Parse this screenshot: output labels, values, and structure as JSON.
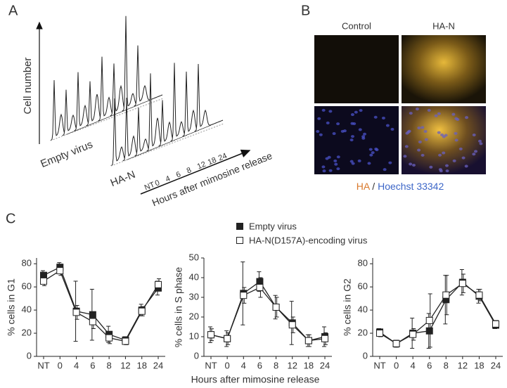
{
  "panels": {
    "a": {
      "label": "A",
      "y_label": "Cell number",
      "row_labels": [
        "Empty virus",
        "HA-N"
      ],
      "x_ticks": [
        "NT",
        "0",
        "4",
        "6",
        "8",
        "12",
        "18",
        "24"
      ],
      "x_label": "Hours after mimosine release"
    },
    "b": {
      "label": "B",
      "columns": [
        "Control",
        "HA-N"
      ],
      "caption": {
        "stain1": "HA",
        "separator": "/",
        "stain2": "Hoechst 33342"
      }
    },
    "c": {
      "label": "C",
      "x_label": "Hours after mimosine release"
    }
  },
  "chart_data": [
    {
      "type": "line",
      "y_label": "% cells in G1",
      "categories": [
        "NT",
        "0",
        "4",
        "6",
        "8",
        "12",
        "18",
        "24"
      ],
      "ylim": [
        0,
        85
      ],
      "yticks": [
        0,
        20,
        40,
        60,
        80
      ],
      "series": [
        {
          "name": "Empty virus",
          "color": "#222222",
          "marker": "filled-square",
          "values": [
            70,
            77,
            39,
            36,
            19,
            14,
            40,
            59
          ],
          "errors": [
            4,
            4,
            26,
            22,
            7,
            3,
            5,
            6
          ]
        },
        {
          "name": "HA-N(D157A)-encoding virus",
          "color": "#222222",
          "marker": "open-square",
          "values": [
            65,
            74,
            38,
            30,
            16,
            13,
            39,
            62
          ],
          "errors": [
            4,
            4,
            6,
            6,
            5,
            3,
            4,
            5
          ]
        }
      ]
    },
    {
      "type": "line",
      "y_label": "% cells in S phase",
      "categories": [
        "NT",
        "0",
        "4",
        "6",
        "8",
        "12",
        "18",
        "24"
      ],
      "ylim": [
        0,
        50
      ],
      "yticks": [
        0,
        10,
        20,
        30,
        40,
        50
      ],
      "series": [
        {
          "color": "#222222",
          "marker": "filled-square",
          "values": [
            11,
            9,
            32,
            38,
            25,
            17,
            8,
            10
          ],
          "errors": [
            4,
            4,
            16,
            5,
            6,
            11,
            3,
            5
          ]
        },
        {
          "color": "#222222",
          "marker": "open-square",
          "values": [
            11,
            9,
            31,
            35,
            25,
            16,
            8,
            9
          ],
          "errors": [
            3,
            3,
            4,
            5,
            5,
            4,
            3,
            3
          ]
        }
      ]
    },
    {
      "type": "line",
      "y_label": "% cells in G2",
      "categories": [
        "NT",
        "0",
        "4",
        "6",
        "8",
        "12",
        "18",
        "24"
      ],
      "ylim": [
        0,
        85
      ],
      "yticks": [
        0,
        20,
        40,
        60,
        80
      ],
      "series": [
        {
          "color": "#222222",
          "marker": "filled-square",
          "values": [
            21,
            11,
            20,
            22,
            49,
            64,
            52,
            27
          ],
          "errors": [
            3,
            3,
            13,
            15,
            21,
            11,
            6,
            3
          ]
        },
        {
          "color": "#222222",
          "marker": "open-square",
          "values": [
            20,
            11,
            19,
            31,
            53,
            63,
            53,
            28
          ],
          "errors": [
            3,
            3,
            5,
            23,
            17,
            8,
            5,
            3
          ]
        }
      ]
    }
  ]
}
